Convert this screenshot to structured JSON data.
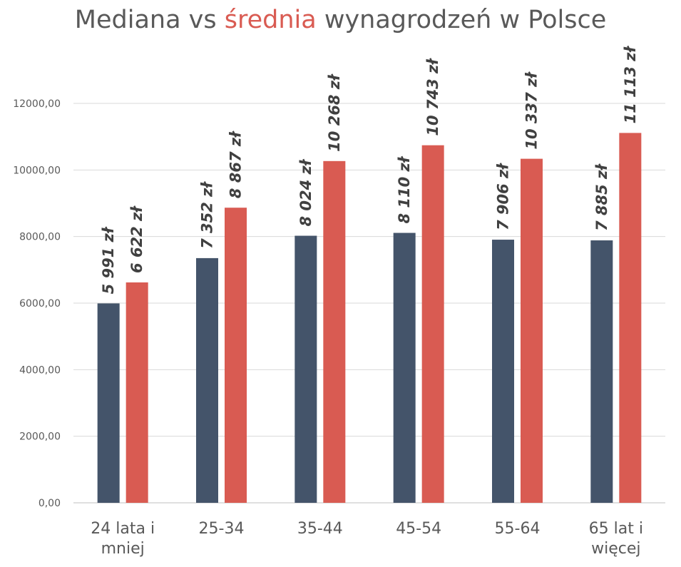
{
  "chart_data": {
    "type": "bar",
    "title_parts": [
      "Mediana vs ",
      "średnia",
      " wynagrodzeń w Polsce"
    ],
    "categories": [
      [
        "24 lata i",
        "mniej"
      ],
      [
        "25-34"
      ],
      [
        "35-44"
      ],
      [
        "45-54"
      ],
      [
        "55-64"
      ],
      [
        "65 lat i",
        "więcej"
      ]
    ],
    "series": [
      {
        "values": [
          5991,
          7352,
          8024,
          8110,
          7906,
          7885
        ],
        "labels": [
          "5 991 zł",
          "7 352 zł",
          "8 024 zł",
          "8 110 zł",
          "7 906 zł",
          "7 885 zł"
        ],
        "color": "#44546a"
      },
      {
        "values": [
          6622,
          8867,
          10268,
          10743,
          10337,
          11113
        ],
        "labels": [
          "6 622 zł",
          "8 867 zł",
          "10 268 zł",
          "10 743 zł",
          "10 337 zł",
          "11 113 zł"
        ],
        "color": "#d95b52"
      }
    ],
    "y_ticks": [
      "0,00",
      "2000,00",
      "4000,00",
      "6000,00",
      "8000,00",
      "10000,00",
      "12000,00"
    ],
    "ylim": [
      0,
      12000
    ],
    "grid": true,
    "legend": "none"
  }
}
